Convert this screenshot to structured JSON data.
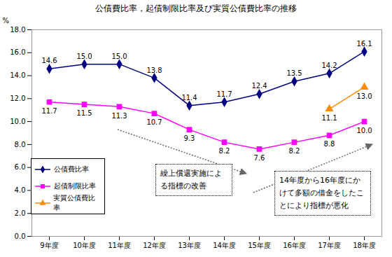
{
  "chart_data": {
    "type": "line",
    "title": "公債費比率，起債制限比率及び実質公債費比率の推移",
    "y_label": "%",
    "categories": [
      "9年度",
      "10年度",
      "11年度",
      "12年度",
      "13年度",
      "14年度",
      "15年度",
      "16年度",
      "17年度",
      "18年度"
    ],
    "series": [
      {
        "name": "公債費比率",
        "color": "#000080",
        "marker": "diamond",
        "values": [
          14.6,
          15.0,
          15.0,
          13.8,
          11.4,
          11.7,
          12.4,
          13.5,
          14.2,
          16.1
        ],
        "value_labels": [
          "14.6",
          "15.0",
          "15.0",
          "13.8",
          "11.4",
          "11.7",
          "12.4",
          "13.5",
          "14.2",
          "16.1"
        ]
      },
      {
        "name": "起債制限比率",
        "color": "#ff00ff",
        "marker": "square",
        "values": [
          11.7,
          11.5,
          11.3,
          10.7,
          9.3,
          8.2,
          7.6,
          8.2,
          8.8,
          10.0
        ],
        "value_labels": [
          "11.7",
          "11.5",
          "11.3",
          "10.7",
          "9.3",
          "8.2",
          "7.6",
          "8.2",
          "8.8",
          "10.0"
        ]
      },
      {
        "name": "実質公債費比率",
        "color": "#ff8c00",
        "marker": "triangle",
        "values": [
          null,
          null,
          null,
          null,
          null,
          null,
          null,
          null,
          11.1,
          13.0
        ],
        "value_labels": [
          null,
          null,
          null,
          null,
          null,
          null,
          null,
          null,
          "11.1",
          "13.0"
        ]
      }
    ],
    "ylim": [
      0,
      18
    ],
    "yticks": [
      {
        "value": 0,
        "label": "0.0"
      },
      {
        "value": 2,
        "label": "2.0"
      },
      {
        "value": 4,
        "label": "4.0"
      },
      {
        "value": 6,
        "label": "6.0"
      },
      {
        "value": 8,
        "label": "8.0"
      },
      {
        "value": 10,
        "label": "10.0"
      },
      {
        "value": 12,
        "label": "12.0"
      },
      {
        "value": 14,
        "label": "14.0"
      },
      {
        "value": 16,
        "label": "16.0"
      },
      {
        "value": 18,
        "label": "18.0"
      }
    ],
    "annotations": [
      "繰上償還実施による指標の改善",
      "14年度から16年度にかけて多額の借金をしたことにより指標が悪化"
    ],
    "grid": false,
    "legend": "lower left",
    "data_labels": true
  }
}
